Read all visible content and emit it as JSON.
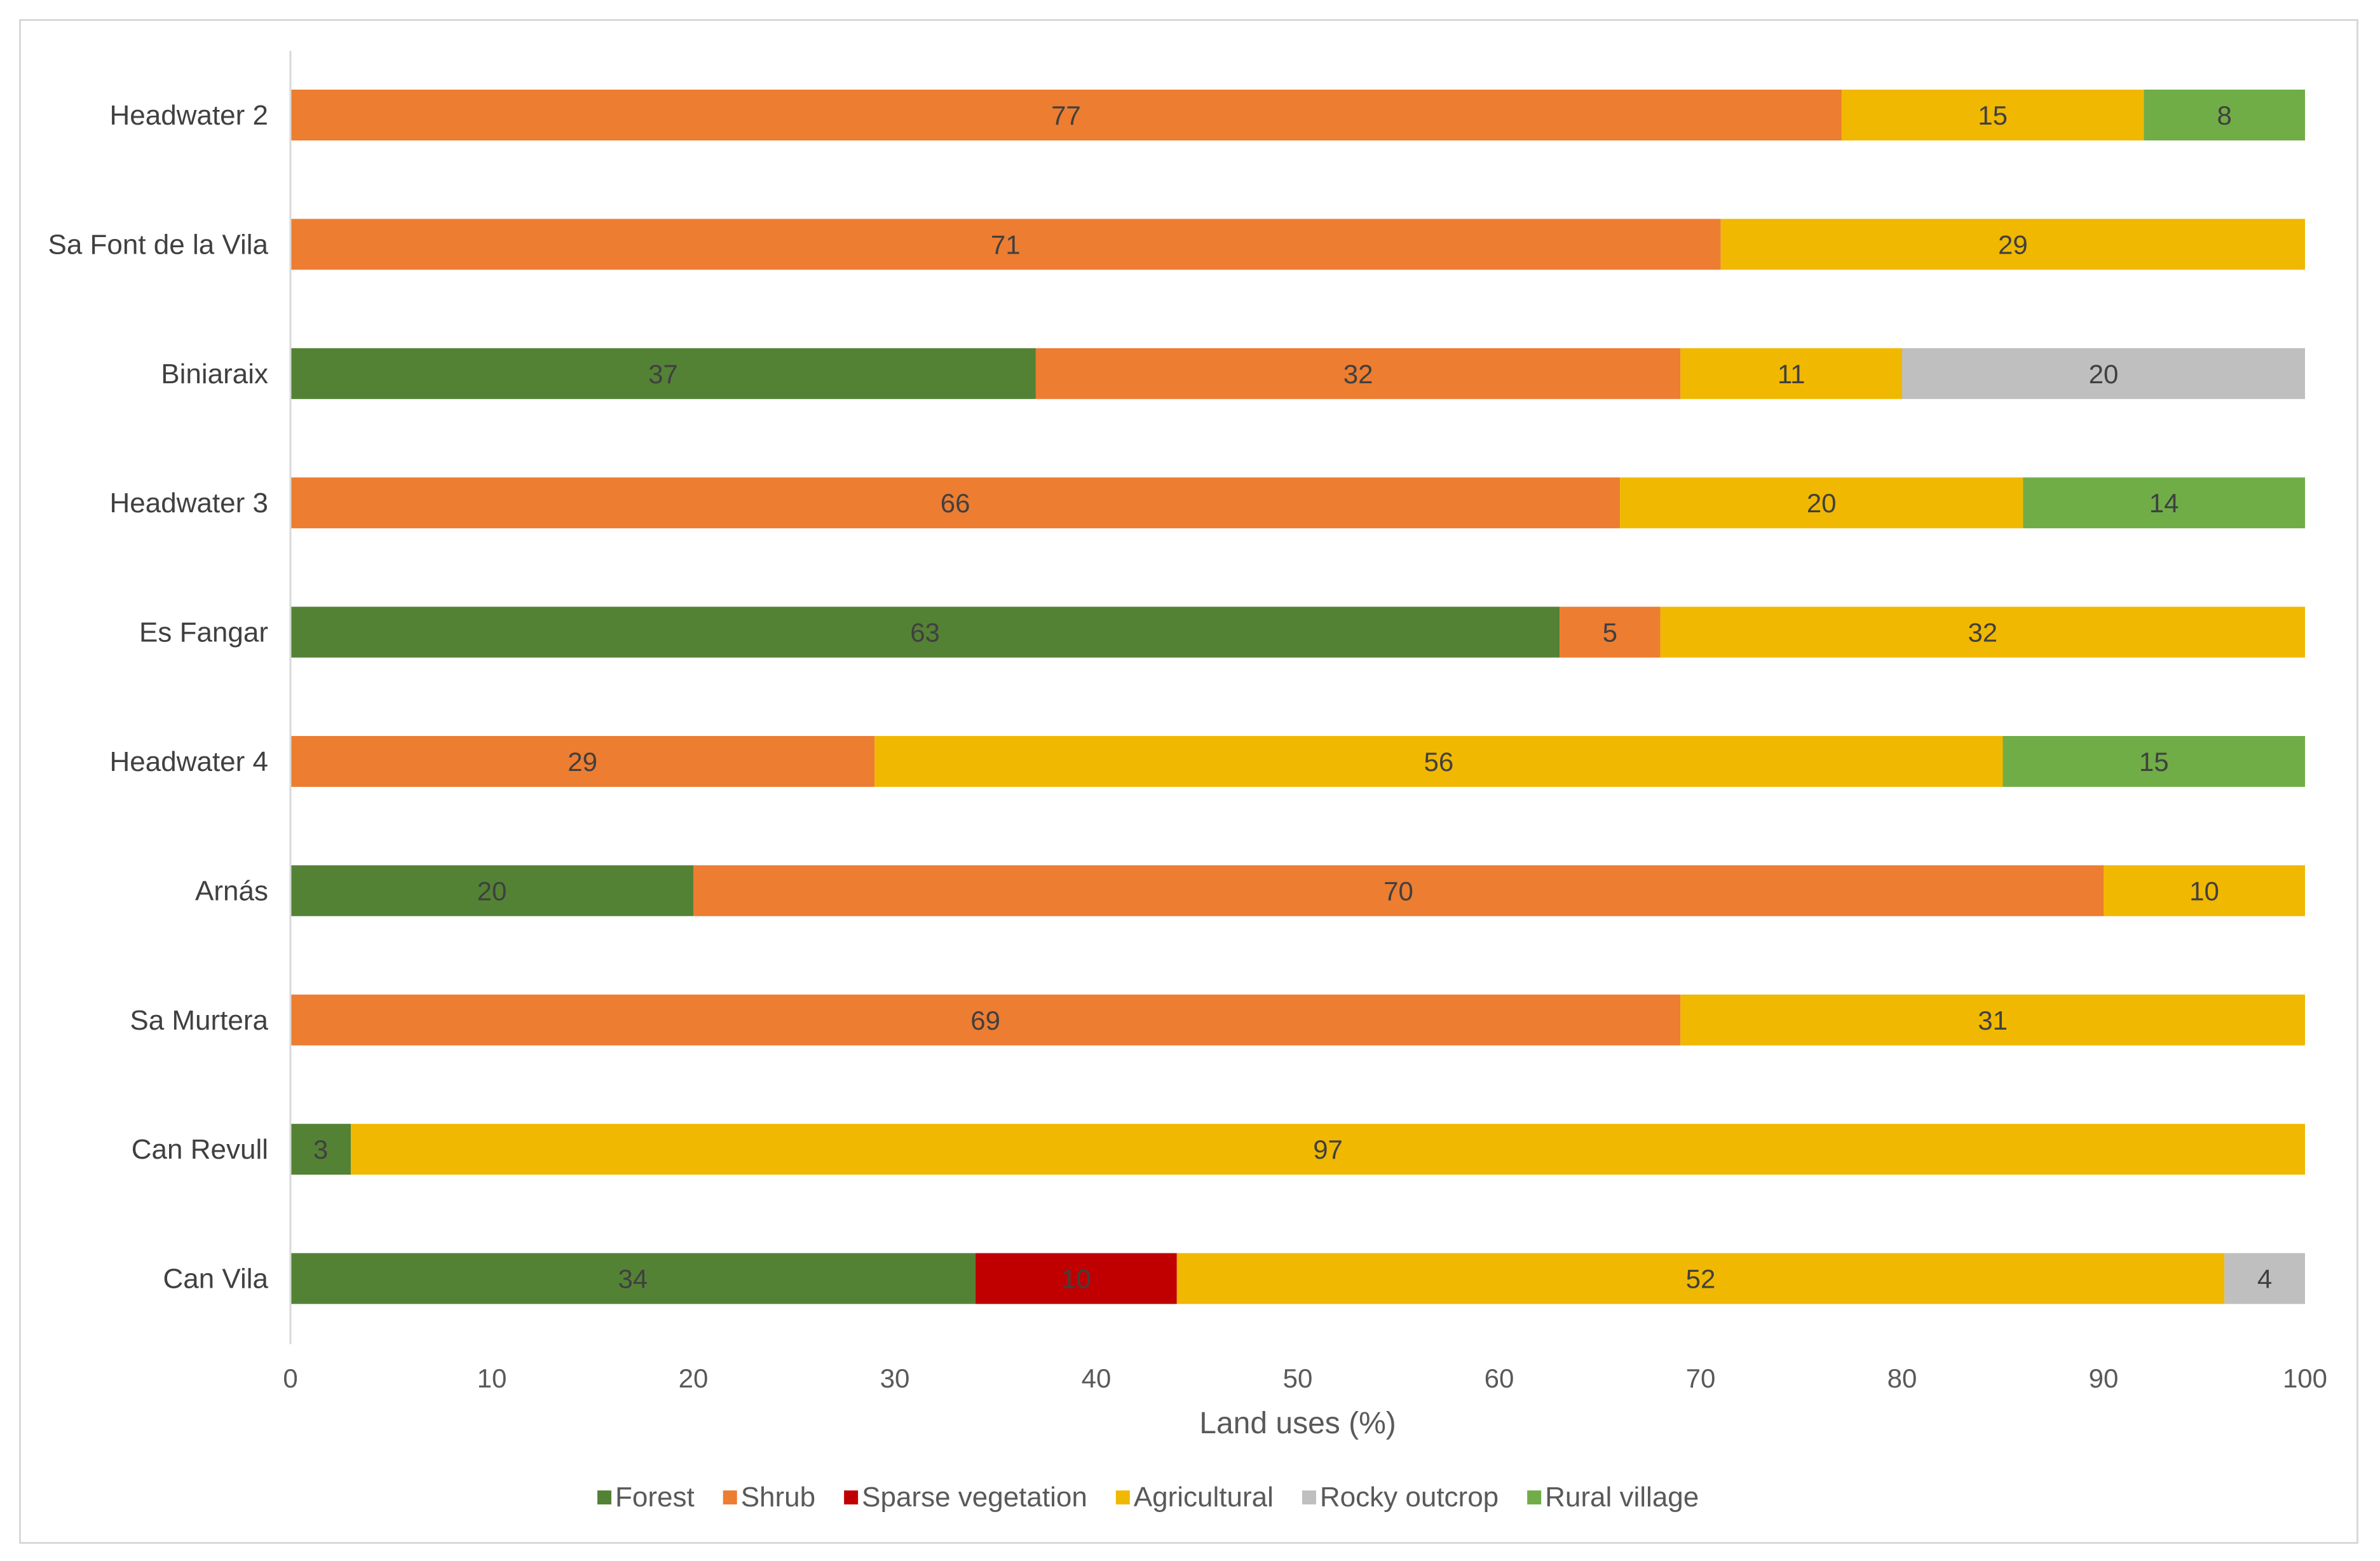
{
  "chart_data": {
    "type": "bar",
    "orientation": "horizontal",
    "stacked": true,
    "xlabel": "Land uses (%)",
    "ylabel": "",
    "xlim": [
      0,
      100
    ],
    "x_ticks": [
      "0",
      "10",
      "20",
      "30",
      "40",
      "50",
      "60",
      "70",
      "80",
      "90",
      "100"
    ],
    "categories": [
      "Headwater 2",
      "Sa Font de la Vila",
      "Biniaraix",
      "Headwater 3",
      "Es Fangar",
      "Headwater 4",
      "Arnás",
      "Sa Murtera",
      "Can Revull",
      "Can Vila"
    ],
    "series": [
      {
        "name": "Forest",
        "color": "#548235",
        "values": [
          0,
          0,
          37,
          0,
          63,
          0,
          20,
          0,
          3,
          34
        ]
      },
      {
        "name": "Shrub",
        "color": "#ED7D31",
        "values": [
          77,
          71,
          32,
          66,
          5,
          29,
          70,
          69,
          0,
          0
        ]
      },
      {
        "name": "Sparse vegetation",
        "color": "#C00000",
        "values": [
          0,
          0,
          0,
          0,
          0,
          0,
          0,
          0,
          0,
          10
        ]
      },
      {
        "name": "Agricultural",
        "color": "#F0B800",
        "values": [
          15,
          29,
          11,
          20,
          32,
          56,
          10,
          31,
          97,
          52
        ]
      },
      {
        "name": "Rocky outcrop",
        "color": "#BFBFBF",
        "values": [
          0,
          0,
          20,
          0,
          0,
          0,
          0,
          0,
          0,
          4
        ]
      },
      {
        "name": "Rural village",
        "color": "#70AD47",
        "values": [
          8,
          0,
          0,
          14,
          0,
          15,
          0,
          0,
          0,
          0
        ]
      }
    ],
    "legend_position": "bottom",
    "grid": false
  }
}
